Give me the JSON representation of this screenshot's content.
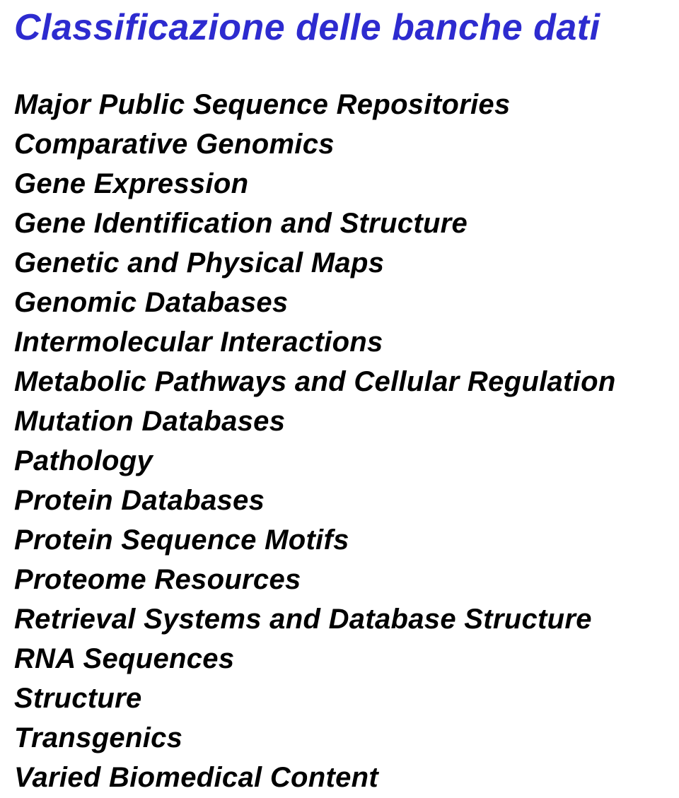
{
  "title": "Classificazione delle banche dati",
  "title_color": "#2d2bcf",
  "title_fontsize": 52,
  "title_fontweight": "bold",
  "title_fontstyle": "italic",
  "item_color": "#000000",
  "item_fontsize": 40,
  "item_fontweight": "bold",
  "item_fontstyle": "italic",
  "background_color": "#ffffff",
  "items": [
    "Major Public Sequence Repositories",
    "Comparative Genomics",
    "Gene Expression",
    "Gene Identification and Structure",
    "Genetic and Physical Maps",
    "Genomic Databases",
    "Intermolecular Interactions",
    "Metabolic Pathways and Cellular Regulation",
    "Mutation Databases",
    "Pathology",
    "Protein Databases",
    "Protein Sequence Motifs",
    "Proteome Resources",
    "Retrieval Systems and Database Structure",
    "RNA Sequences",
    "Structure",
    "Transgenics",
    "Varied Biomedical Content"
  ]
}
